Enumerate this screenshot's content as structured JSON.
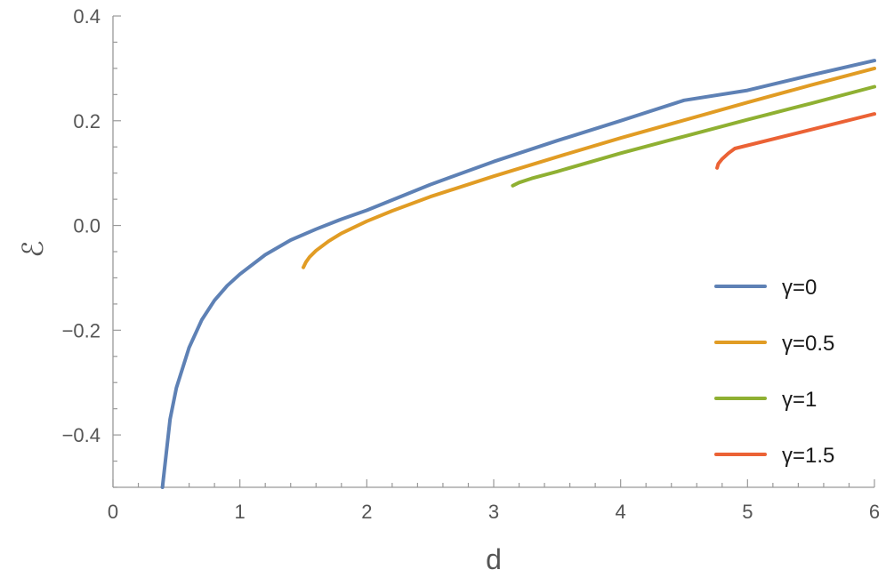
{
  "chart_data": {
    "type": "line",
    "xlabel": "d",
    "ylabel": "ℰ",
    "xlim": [
      0,
      6
    ],
    "ylim": [
      -0.5,
      0.4
    ],
    "xticks": [
      0,
      1,
      2,
      3,
      4,
      5,
      6
    ],
    "xtick_labels": [
      "0",
      "1",
      "2",
      "3",
      "4",
      "5",
      "6"
    ],
    "yticks": [
      -0.4,
      -0.2,
      0.0,
      0.2,
      0.4
    ],
    "ytick_labels": [
      "−0.4",
      "−0.2",
      "0.0",
      "0.2",
      "0.4"
    ],
    "grid": false,
    "legend_position": "bottom-right",
    "series": [
      {
        "name": "γ=0",
        "color": "#5E81B5",
        "x": [
          0.39,
          0.45,
          0.5,
          0.6,
          0.7,
          0.8,
          0.9,
          1.0,
          1.2,
          1.4,
          1.6,
          1.8,
          2.0,
          2.5,
          3.0,
          3.5,
          4.0,
          4.5,
          5.0,
          5.5,
          6.0
        ],
        "y": [
          -0.5,
          -0.37,
          -0.31,
          -0.233,
          -0.18,
          -0.143,
          -0.115,
          -0.093,
          -0.056,
          -0.028,
          -0.007,
          0.012,
          0.029,
          0.078,
          0.122,
          0.162,
          0.2,
          0.239,
          0.258,
          0.287,
          0.315
        ]
      },
      {
        "name": "γ=0.5",
        "color": "#E19C24",
        "x": [
          1.5,
          1.52,
          1.55,
          1.6,
          1.7,
          1.8,
          2.0,
          2.2,
          2.5,
          3.0,
          3.5,
          4.0,
          4.5,
          5.0,
          5.5,
          6.0
        ],
        "y": [
          -0.08,
          -0.07,
          -0.06,
          -0.048,
          -0.03,
          -0.015,
          0.008,
          0.028,
          0.055,
          0.094,
          0.131,
          0.167,
          0.201,
          0.235,
          0.268,
          0.3
        ]
      },
      {
        "name": "γ=1",
        "color": "#8FB032",
        "x": [
          3.15,
          3.2,
          3.3,
          3.5,
          4.0,
          4.5,
          5.0,
          5.5,
          6.0
        ],
        "y": [
          0.076,
          0.082,
          0.09,
          0.103,
          0.138,
          0.17,
          0.202,
          0.233,
          0.265
        ]
      },
      {
        "name": "γ=1.5",
        "color": "#EB6235",
        "x": [
          4.76,
          4.77,
          4.8,
          4.85,
          4.9,
          5.0,
          5.5,
          6.0
        ],
        "y": [
          0.11,
          0.118,
          0.127,
          0.138,
          0.147,
          0.153,
          0.183,
          0.213
        ]
      }
    ]
  }
}
